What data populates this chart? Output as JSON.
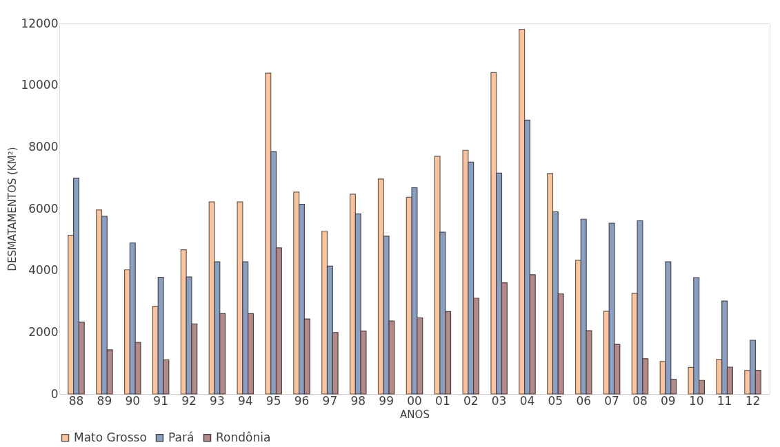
{
  "chart_data": {
    "type": "bar",
    "xlabel": "ANOS",
    "ylabel": "DESMATAMENTOS (KM²)",
    "categories": [
      "88",
      "89",
      "90",
      "91",
      "92",
      "93",
      "94",
      "95",
      "96",
      "97",
      "98",
      "99",
      "00",
      "01",
      "02",
      "03",
      "04",
      "05",
      "06",
      "07",
      "08",
      "09",
      "10",
      "11",
      "12"
    ],
    "series": [
      {
        "name": "Mato Grosso",
        "color": "#f9c4a0",
        "values": [
          5140,
          5960,
          4020,
          2840,
          4670,
          6220,
          6220,
          10390,
          6540,
          5270,
          6470,
          6960,
          6370,
          7700,
          7890,
          10410,
          11810,
          7140,
          4330,
          2680,
          3260,
          1050,
          860,
          1120,
          760
        ]
      },
      {
        "name": "Pará",
        "color": "#8c9fbf",
        "values": [
          6990,
          5750,
          4890,
          3780,
          3790,
          4280,
          4280,
          7850,
          6140,
          4140,
          5830,
          5110,
          6680,
          5240,
          7510,
          7150,
          8870,
          5900,
          5660,
          5530,
          5610,
          4280,
          3770,
          3010,
          1740
        ]
      },
      {
        "name": "Rondônia",
        "color": "#b38a8a",
        "values": [
          2330,
          1430,
          1670,
          1110,
          2270,
          2600,
          2600,
          4730,
          2430,
          1990,
          2040,
          2360,
          2460,
          2670,
          3100,
          3600,
          3860,
          3240,
          2050,
          1610,
          1140,
          480,
          440,
          870,
          770
        ]
      }
    ],
    "ylim": [
      0,
      12000
    ],
    "yticks": [
      0,
      2000,
      4000,
      6000,
      8000,
      10000,
      12000
    ],
    "grid": false,
    "legend": "bottom"
  }
}
